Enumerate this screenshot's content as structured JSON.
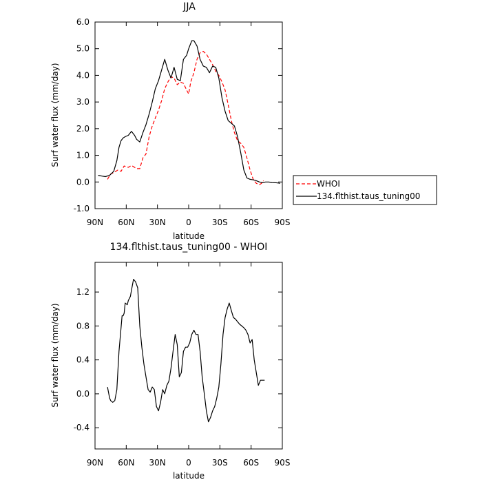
{
  "chart_data": [
    {
      "type": "line",
      "title": "JJA",
      "xlabel": "latitude",
      "ylabel": "Surf water flux (mm/day)",
      "xlim": [
        90,
        -90
      ],
      "ylim": [
        -1.0,
        6.0
      ],
      "xticks": [
        90,
        60,
        30,
        0,
        -30,
        -60,
        -90
      ],
      "xtick_labels": [
        "90N",
        "60N",
        "30N",
        "0",
        "30S",
        "60S",
        "90S"
      ],
      "yticks": [
        -1,
        0,
        1,
        2,
        3,
        4,
        5,
        6
      ],
      "ytick_labels": [
        "-1.0",
        "0.0",
        "1.0",
        "2.0",
        "3.0",
        "4.0",
        "5.0",
        "6.0"
      ],
      "legend_position": "right",
      "series": [
        {
          "name": "WHOI",
          "color": "#ff0000",
          "style": "dashed",
          "x": [
            78,
            75,
            72,
            68,
            65,
            62,
            58,
            55,
            52,
            50,
            47,
            44,
            41,
            38,
            35,
            32,
            29,
            26,
            23,
            20,
            17,
            14,
            11,
            8,
            5,
            2,
            0,
            -2,
            -5,
            -8,
            -11,
            -14,
            -17,
            -20,
            -23,
            -26,
            -29,
            -32,
            -35,
            -38,
            -41,
            -44,
            -47,
            -50,
            -53,
            -56,
            -59,
            -62,
            -65,
            -68,
            -70,
            -72
          ],
          "y": [
            0.1,
            0.3,
            0.35,
            0.45,
            0.4,
            0.6,
            0.55,
            0.62,
            0.55,
            0.5,
            0.5,
            0.9,
            1.05,
            1.7,
            2.1,
            2.4,
            2.7,
            3.05,
            3.5,
            3.75,
            3.95,
            3.9,
            3.65,
            3.75,
            3.7,
            3.45,
            3.3,
            3.75,
            4.1,
            4.6,
            4.85,
            4.9,
            4.8,
            4.6,
            4.4,
            4.15,
            4.0,
            3.75,
            3.45,
            2.9,
            2.3,
            1.85,
            1.55,
            1.45,
            1.3,
            0.9,
            0.45,
            0.1,
            -0.05,
            -0.1,
            -0.05,
            0.05
          ]
        },
        {
          "name": "134.flthist.taus_tuning00",
          "color": "#000000",
          "style": "solid",
          "x": [
            87,
            83,
            80,
            76,
            72,
            69,
            67,
            65,
            63,
            61,
            58,
            55,
            52,
            50,
            47,
            44,
            41,
            38,
            35,
            32,
            29,
            26,
            23,
            20,
            17,
            14,
            11,
            8,
            5,
            2,
            0,
            -3,
            -5,
            -8,
            -11,
            -14,
            -17,
            -20,
            -23,
            -26,
            -29,
            -32,
            -35,
            -38,
            -41,
            -44,
            -47,
            -50,
            -53,
            -56,
            -59,
            -62,
            -65,
            -68,
            -71,
            -74,
            -77,
            -80,
            -84,
            -88
          ],
          "y": [
            0.25,
            0.22,
            0.2,
            0.25,
            0.4,
            0.8,
            1.3,
            1.55,
            1.65,
            1.7,
            1.75,
            1.9,
            1.75,
            1.6,
            1.5,
            1.85,
            2.15,
            2.55,
            3.0,
            3.5,
            3.8,
            4.2,
            4.6,
            4.2,
            3.9,
            4.3,
            3.85,
            3.8,
            4.6,
            4.75,
            5.0,
            5.3,
            5.3,
            5.1,
            4.6,
            4.35,
            4.3,
            4.1,
            4.35,
            4.3,
            3.9,
            3.15,
            2.65,
            2.3,
            2.2,
            2.1,
            1.7,
            1.1,
            0.45,
            0.15,
            0.1,
            0.08,
            0.05,
            0.0,
            -0.02,
            0.0,
            0.0,
            -0.02,
            -0.03,
            -0.05
          ]
        }
      ]
    },
    {
      "type": "line",
      "title": "134.flthist.taus_tuning00 - WHOI",
      "xlabel": "latitude",
      "ylabel": "Surf water flux (mm/day)",
      "xlim": [
        90,
        -90
      ],
      "ylim": [
        -0.65,
        1.55
      ],
      "xticks": [
        90,
        60,
        30,
        0,
        -30,
        -60,
        -90
      ],
      "xtick_labels": [
        "90N",
        "60N",
        "30N",
        "0",
        "30S",
        "60S",
        "90S"
      ],
      "yticks": [
        -0.4,
        0.0,
        0.4,
        0.8,
        1.2
      ],
      "ytick_labels": [
        "-0.4",
        "0.0",
        "0.4",
        "0.8",
        "1.2"
      ],
      "series": [
        {
          "color": "#000000",
          "style": "solid",
          "x": [
            78,
            76,
            75,
            73,
            71,
            69,
            67,
            65,
            64,
            63,
            62,
            61,
            59,
            58,
            56,
            55,
            53,
            51,
            49,
            47,
            45,
            43,
            41,
            39,
            37,
            35,
            33,
            31,
            29,
            27,
            25,
            23,
            21,
            19,
            17,
            15,
            13,
            11,
            9,
            7,
            5,
            3,
            1,
            -1,
            -3,
            -5,
            -7,
            -9,
            -11,
            -13,
            -15,
            -17,
            -19,
            -21,
            -23,
            -25,
            -27,
            -29,
            -31,
            -33,
            -35,
            -37,
            -39,
            -41,
            -43,
            -45,
            -47,
            -49,
            -51,
            -53,
            -55,
            -57,
            -59,
            -61,
            -63,
            -65,
            -67,
            -69,
            -71,
            -73
          ],
          "y": [
            0.08,
            -0.05,
            -0.08,
            -0.1,
            -0.08,
            0.05,
            0.5,
            0.78,
            0.92,
            0.92,
            0.95,
            1.07,
            1.05,
            1.1,
            1.15,
            1.22,
            1.35,
            1.32,
            1.25,
            0.8,
            0.55,
            0.35,
            0.2,
            0.05,
            0.02,
            0.08,
            0.05,
            -0.15,
            -0.2,
            -0.1,
            0.05,
            0.0,
            0.1,
            0.15,
            0.3,
            0.5,
            0.7,
            0.58,
            0.2,
            0.25,
            0.5,
            0.55,
            0.55,
            0.6,
            0.7,
            0.75,
            0.7,
            0.7,
            0.5,
            0.2,
            0.0,
            -0.2,
            -0.33,
            -0.28,
            -0.2,
            -0.15,
            -0.05,
            0.08,
            0.35,
            0.7,
            0.9,
            1.0,
            1.07,
            0.98,
            0.9,
            0.88,
            0.85,
            0.82,
            0.8,
            0.78,
            0.75,
            0.7,
            0.6,
            0.64,
            0.4,
            0.25,
            0.1,
            0.16,
            0.16,
            0.16
          ]
        }
      ]
    }
  ]
}
